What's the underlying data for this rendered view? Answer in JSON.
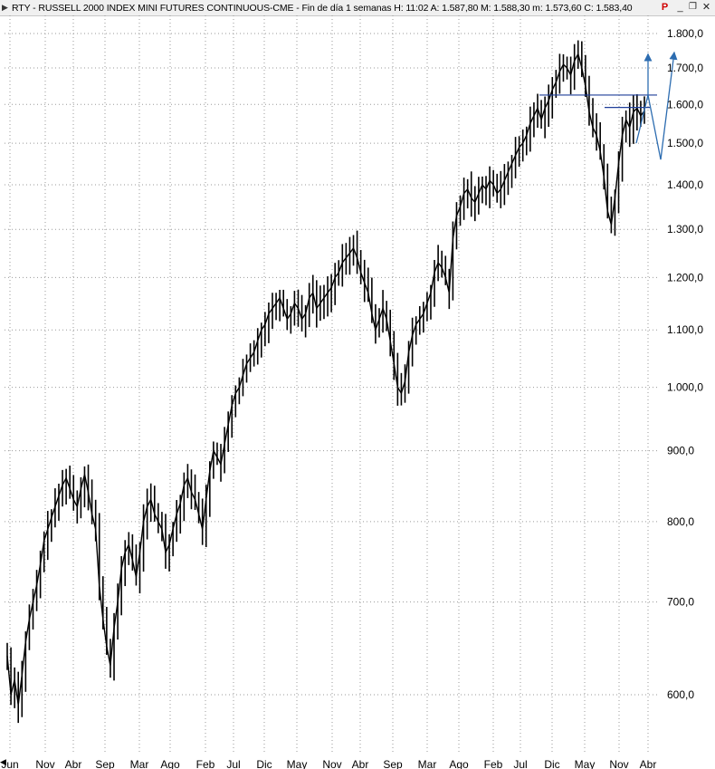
{
  "window": {
    "title": "RTY - RUSSELL 2000 INDEX MINI FUTURES CONTINUOUS-CME - Fin de día 1 semanas  H: 11:02  A: 1.587,80  M: 1.588,30  m: 1.573,60  C: 1.583,40",
    "buttons": [
      "P",
      "_",
      "❐",
      "✕"
    ]
  },
  "colors": {
    "price": "#000000",
    "grid": "#9a9a9a",
    "annotation": "#1f3f99",
    "annotation_arrow": "#2c6cb0"
  },
  "chart_data": {
    "type": "line",
    "title": "",
    "xlabel": "",
    "ylabel": "",
    "y_scale": "log",
    "ylim": [
      555,
      1850
    ],
    "grid": "dotted",
    "y_ticks": [
      {
        "value": 1800,
        "label": "1.800,0"
      },
      {
        "value": 1700,
        "label": "1.700,0"
      },
      {
        "value": 1600,
        "label": "1.600,0"
      },
      {
        "value": 1500,
        "label": "1.500,0"
      },
      {
        "value": 1400,
        "label": "1.400,0"
      },
      {
        "value": 1300,
        "label": "1.300,0"
      },
      {
        "value": 1200,
        "label": "1.200,0"
      },
      {
        "value": 1100,
        "label": "1.100,0"
      },
      {
        "value": 1000,
        "label": "1.000,0"
      },
      {
        "value": 900,
        "label": "900,0"
      },
      {
        "value": 800,
        "label": "800,0"
      },
      {
        "value": 700,
        "label": "700,0"
      },
      {
        "value": 600,
        "label": "600,0"
      }
    ],
    "x_ticks": [
      "Jun",
      "Nov",
      "Abr",
      "Sep",
      "Mar",
      "Ago",
      "Feb",
      "Jul",
      "Dic",
      "May",
      "Nov",
      "Abr",
      "Sep",
      "Mar",
      "Ago",
      "Feb",
      "Jul",
      "Dic",
      "May",
      "Nov",
      "Abr"
    ],
    "series": [
      {
        "values": [
          640,
          600,
          615,
          590,
          620,
          655,
          680,
          700,
          720,
          745,
          775,
          790,
          805,
          820,
          835,
          850,
          860,
          845,
          830,
          820,
          845,
          865,
          840,
          810,
          790,
          720,
          680,
          650,
          630,
          670,
          700,
          740,
          760,
          770,
          750,
          730,
          760,
          800,
          820,
          830,
          810,
          800,
          790,
          760,
          770,
          790,
          810,
          825,
          850,
          860,
          840,
          830,
          810,
          790,
          830,
          870,
          900,
          890,
          880,
          910,
          940,
          970,
          990,
          1000,
          1020,
          1040,
          1050,
          1060,
          1080,
          1100,
          1110,
          1130,
          1140,
          1150,
          1160,
          1140,
          1120,
          1130,
          1150,
          1140,
          1120,
          1130,
          1160,
          1170,
          1140,
          1150,
          1160,
          1170,
          1180,
          1200,
          1210,
          1230,
          1240,
          1250,
          1260,
          1240,
          1210,
          1190,
          1170,
          1130,
          1100,
          1120,
          1140,
          1120,
          1080,
          1040,
          1000,
          990,
          1010,
          1060,
          1090,
          1110,
          1120,
          1130,
          1150,
          1170,
          1210,
          1230,
          1220,
          1200,
          1170,
          1280,
          1330,
          1350,
          1380,
          1390,
          1370,
          1360,
          1380,
          1400,
          1390,
          1410,
          1400,
          1380,
          1390,
          1410,
          1430,
          1450,
          1470,
          1490,
          1500,
          1520,
          1550,
          1570,
          1590,
          1560,
          1590,
          1610,
          1640,
          1660,
          1690,
          1710,
          1700,
          1680,
          1720,
          1740,
          1700,
          1650,
          1580,
          1540,
          1520,
          1480,
          1420,
          1340,
          1310,
          1370,
          1450,
          1520,
          1560,
          1540,
          1580,
          1590,
          1570,
          1583
        ]
      }
    ],
    "annotations": {
      "resistance_line": 1625,
      "support_line": 1592,
      "projection_low": 1460,
      "projection_high_1": 1740,
      "projection_high_2": 1745
    }
  }
}
